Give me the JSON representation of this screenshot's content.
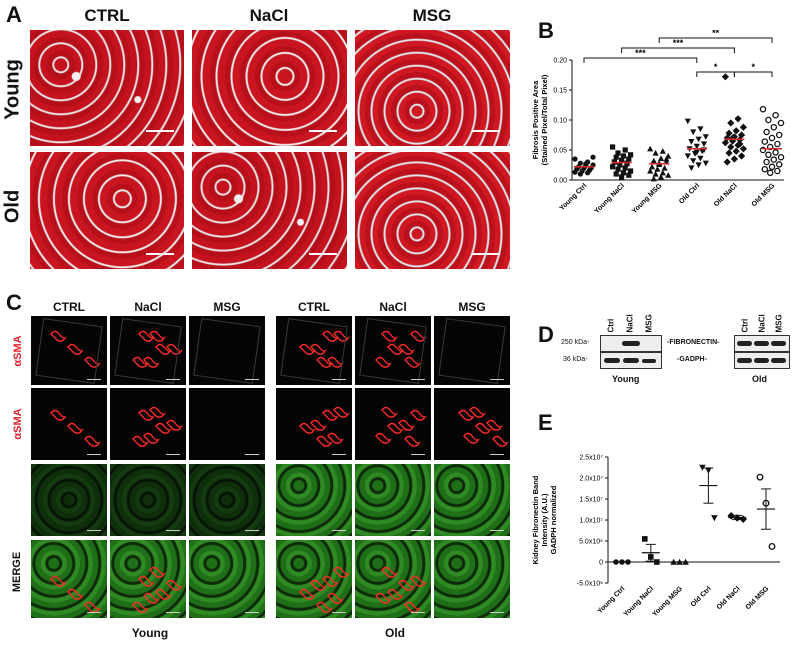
{
  "panelA": {
    "label": "A",
    "cols": [
      "CTRL",
      "NaCl",
      "MSG"
    ],
    "rows": [
      "Young",
      "Old"
    ]
  },
  "panelB": {
    "label": "B",
    "sig": [
      "***",
      "***",
      "**",
      "*",
      "*"
    ]
  },
  "panelC": {
    "label": "C",
    "cols": [
      "CTRL",
      "NaCl",
      "MSG",
      "CTRL",
      "NaCl",
      "MSG"
    ],
    "rows": [
      "αSMA",
      "αSMA",
      "",
      "MERGE"
    ],
    "group_young": "Young",
    "group_old": "Old"
  },
  "panelD": {
    "label": "D",
    "lanes": [
      "Ctrl",
      "NaCl",
      "MSG",
      "Ctrl",
      "NaCl",
      "MSG"
    ],
    "kda_top": "250 kDa-",
    "kda_bottom": "36 kDa-",
    "band_top": "-FIBRONECTIN-",
    "band_bottom": "-GADPH-",
    "group_young": "Young",
    "group_old": "Old"
  },
  "panelE": {
    "label": "E"
  },
  "colors": {
    "trichrome_red": "#c0121c",
    "mean_line": "#e0282e",
    "alpha_label": "#e0202a"
  },
  "chart_data": [
    {
      "type": "scatter",
      "panel": "B",
      "ylabel": "Fibrosis Positive Area\n(Stained Pixel/Total Pixel)",
      "ylim": [
        0,
        0.2
      ],
      "yticks": [
        "0.00",
        "0.05",
        "0.10",
        "0.15",
        "0.20"
      ],
      "categories": [
        "Young Ctrl",
        "Young NaCl",
        "Young MSG",
        "Old Ctrl",
        "Old NaCl",
        "Old MSG"
      ],
      "means": [
        0.022,
        0.029,
        0.027,
        0.052,
        0.068,
        0.052
      ],
      "series": [
        {
          "values": [
            0.035,
            0.03,
            0.028,
            0.025,
            0.024,
            0.022,
            0.02,
            0.02,
            0.018,
            0.016,
            0.015,
            0.013,
            0.012,
            0.01,
            0.038,
            0.027
          ]
        },
        {
          "values": [
            0.055,
            0.05,
            0.045,
            0.042,
            0.04,
            0.038,
            0.035,
            0.033,
            0.03,
            0.028,
            0.025,
            0.022,
            0.02,
            0.018,
            0.015,
            0.012,
            0.01,
            0.008,
            0.005,
            0.03,
            0.027
          ]
        },
        {
          "values": [
            0.052,
            0.048,
            0.045,
            0.04,
            0.036,
            0.032,
            0.03,
            0.026,
            0.022,
            0.02,
            0.018,
            0.015,
            0.012,
            0.01,
            0.008,
            0.005,
            0.002,
            0.035,
            0.028
          ]
        },
        {
          "values": [
            0.098,
            0.085,
            0.08,
            0.072,
            0.068,
            0.064,
            0.06,
            0.056,
            0.052,
            0.048,
            0.044,
            0.04,
            0.036,
            0.032,
            0.028,
            0.025,
            0.02,
            0.05,
            0.046
          ]
        },
        {
          "values": [
            0.172,
            0.102,
            0.095,
            0.088,
            0.082,
            0.078,
            0.075,
            0.072,
            0.07,
            0.067,
            0.065,
            0.062,
            0.058,
            0.055,
            0.052,
            0.048,
            0.045,
            0.04,
            0.035,
            0.03,
            0.06,
            0.07
          ]
        },
        {
          "values": [
            0.118,
            0.108,
            0.1,
            0.095,
            0.088,
            0.08,
            0.075,
            0.07,
            0.064,
            0.06,
            0.055,
            0.05,
            0.046,
            0.042,
            0.038,
            0.034,
            0.03,
            0.026,
            0.022,
            0.018,
            0.015,
            0.012
          ]
        }
      ],
      "markers": [
        "circle",
        "square",
        "triangle",
        "triangle-down",
        "diamond",
        "open-circle"
      ],
      "significance": [
        {
          "from": "Young Ctrl",
          "to": "Old Ctrl",
          "label": "***"
        },
        {
          "from": "Young NaCl",
          "to": "Old NaCl",
          "label": "***"
        },
        {
          "from": "Young MSG",
          "to": "Old MSG",
          "label": "**"
        },
        {
          "from": "Old Ctrl",
          "to": "Old NaCl",
          "label": "*"
        },
        {
          "from": "Old NaCl",
          "to": "Old MSG",
          "label": "*"
        }
      ]
    },
    {
      "type": "scatter",
      "panel": "E",
      "ylabel": "Kidney Fibronectin Band\nIntensity (A.U.)\nGADPH normalized",
      "ylim": [
        -5000000,
        25000000
      ],
      "yticks": [
        "-5.0x10⁶",
        "0",
        "5.0x10⁶",
        "1.0x10⁷",
        "1.5x10⁷",
        "2.0x10⁷",
        "2.5x10⁷"
      ],
      "categories": [
        "Young Ctrl",
        "Young NaCl",
        "Young MSG",
        "Old Ctrl",
        "Old NaCl",
        "Old MSG"
      ],
      "means": [
        0,
        2200000,
        0,
        18200000,
        10600000,
        12600000
      ],
      "errors": [
        0,
        2000000,
        0,
        4200000,
        500000,
        4800000
      ],
      "series": [
        {
          "values": [
            0,
            0,
            0
          ]
        },
        {
          "values": [
            5500000,
            1200000,
            0
          ]
        },
        {
          "values": [
            0,
            0,
            0
          ]
        },
        {
          "values": [
            22500000,
            21800000,
            10500000
          ]
        },
        {
          "values": [
            11000000,
            10500000,
            10200000
          ]
        },
        {
          "values": [
            20200000,
            14000000,
            3700000
          ]
        }
      ],
      "markers": [
        "circle",
        "square",
        "triangle",
        "triangle-down",
        "diamond",
        "open-circle"
      ]
    }
  ]
}
